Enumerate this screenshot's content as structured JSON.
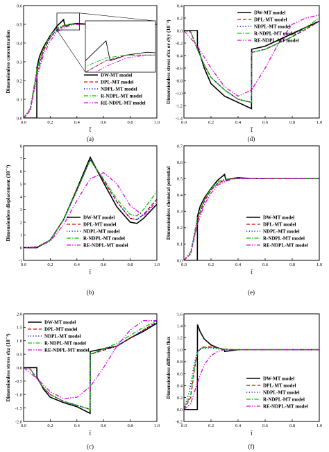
{
  "styles": {
    "DW-MT model": {
      "color": "#000000",
      "dash": "",
      "width": 1.6
    },
    "DPL-MT model": {
      "color": "#e00000",
      "dash": "5,3",
      "width": 1.3
    },
    "NDPL-MT model": {
      "color": "#1010c0",
      "dash": "1.2,2.6",
      "width": 1.6
    },
    "R-NDPL-MT model": {
      "color": "#00c000",
      "dash": "6,2,1.5,2",
      "width": 1.3
    },
    "RE-NDPL-MT model": {
      "color": "#e000e0",
      "dash": "6,2,1.5,2,1.5,2",
      "width": 1.3
    }
  },
  "chart_data": [
    {
      "type": "line",
      "caption": "(a)",
      "ylabel": "Dimensionless concentration",
      "xlabel": "t̄",
      "xlim": [
        0,
        1
      ],
      "ylim": [
        0,
        0.6
      ],
      "xticks": [
        "0.0",
        "0.2",
        "0.4",
        "0.6",
        "0.8",
        "1.0"
      ],
      "yticks": [
        "0.0",
        "0.1",
        "0.2",
        "0.3",
        "0.4",
        "0.5",
        "0.6"
      ],
      "legend_position": "bottom-right",
      "zoom_inset": true,
      "series": [
        {
          "name": "DW-MT model",
          "x": [
            0,
            0.099,
            0.1,
            0.12,
            0.15,
            0.2,
            0.25,
            0.3,
            0.31,
            0.35,
            0.4,
            0.5,
            1.0
          ],
          "y": [
            0,
            0,
            0.27,
            0.33,
            0.38,
            0.44,
            0.49,
            0.525,
            0.49,
            0.5,
            0.505,
            0.5,
            0.5
          ]
        },
        {
          "name": "DPL-MT model",
          "x": [
            0,
            0.05,
            0.1,
            0.15,
            0.2,
            0.25,
            0.3,
            0.35,
            0.4,
            0.5,
            1.0
          ],
          "y": [
            0,
            0.04,
            0.24,
            0.36,
            0.43,
            0.47,
            0.49,
            0.5,
            0.5,
            0.5,
            0.5
          ]
        },
        {
          "name": "NDPL-MT model",
          "x": [
            0,
            0.05,
            0.1,
            0.15,
            0.2,
            0.25,
            0.3,
            0.35,
            0.4,
            0.5,
            1.0
          ],
          "y": [
            0,
            0.05,
            0.25,
            0.36,
            0.43,
            0.47,
            0.49,
            0.5,
            0.5,
            0.5,
            0.5
          ]
        },
        {
          "name": "R-NDPL-MT model",
          "x": [
            0,
            0.05,
            0.1,
            0.15,
            0.2,
            0.25,
            0.3,
            0.35,
            0.4,
            0.5,
            1.0
          ],
          "y": [
            0,
            0.05,
            0.26,
            0.37,
            0.44,
            0.48,
            0.495,
            0.5,
            0.5,
            0.5,
            0.5
          ]
        },
        {
          "name": "RE-NDPL-MT model",
          "x": [
            0,
            0.05,
            0.1,
            0.15,
            0.2,
            0.25,
            0.3,
            0.35,
            0.4,
            0.5,
            1.0
          ],
          "y": [
            0,
            0.04,
            0.22,
            0.34,
            0.41,
            0.46,
            0.48,
            0.495,
            0.5,
            0.5,
            0.5
          ]
        }
      ]
    },
    {
      "type": "line",
      "caption": "(d)",
      "ylabel": "Dimensionless stress σ̄xx or σ̄yy (10⁻⁴)",
      "xlabel": "t̄",
      "xlim": [
        0,
        1
      ],
      "ylim": [
        -1.4,
        0.4
      ],
      "xticks": [
        "0.0",
        "0.2",
        "0.4",
        "0.6",
        "0.8",
        "1.0"
      ],
      "yticks": [
        "-1.4",
        "-1.2",
        "-1.0",
        "-0.8",
        "-0.6",
        "-0.4",
        "-0.2",
        "0.0",
        "0.2",
        "0.4"
      ],
      "legend_position": "top-right",
      "series": [
        {
          "name": "DW-MT model",
          "x": [
            0,
            0.099,
            0.1,
            0.15,
            0.2,
            0.3,
            0.4,
            0.499,
            0.5,
            0.6,
            0.7,
            0.8,
            0.9,
            1.0
          ],
          "y": [
            0,
            0,
            -0.25,
            -0.6,
            -0.85,
            -1.05,
            -1.15,
            -1.25,
            -0.3,
            -0.25,
            -0.15,
            -0.05,
            0.05,
            0.15
          ]
        },
        {
          "name": "DPL-MT model",
          "x": [
            0,
            0.05,
            0.1,
            0.15,
            0.2,
            0.3,
            0.4,
            0.499,
            0.5,
            0.6,
            0.7,
            0.8,
            0.9,
            1.0
          ],
          "y": [
            0,
            -0.02,
            -0.3,
            -0.55,
            -0.75,
            -0.95,
            -1.1,
            -1.15,
            -0.35,
            -0.3,
            -0.2,
            -0.1,
            0.02,
            0.15
          ]
        },
        {
          "name": "NDPL-MT model",
          "x": [
            0,
            0.05,
            0.1,
            0.15,
            0.2,
            0.3,
            0.4,
            0.499,
            0.5,
            0.6,
            0.7,
            0.8,
            0.9,
            1.0
          ],
          "y": [
            0,
            -0.02,
            -0.3,
            -0.55,
            -0.75,
            -0.95,
            -1.1,
            -1.15,
            -0.35,
            -0.3,
            -0.2,
            -0.1,
            0.02,
            0.15
          ]
        },
        {
          "name": "R-NDPL-MT model",
          "x": [
            0,
            0.05,
            0.1,
            0.15,
            0.2,
            0.3,
            0.4,
            0.499,
            0.5,
            0.6,
            0.7,
            0.8,
            0.9,
            1.0
          ],
          "y": [
            0,
            -0.02,
            -0.3,
            -0.55,
            -0.75,
            -0.95,
            -1.1,
            -1.15,
            -0.35,
            -0.3,
            -0.2,
            -0.1,
            0.05,
            0.2
          ]
        },
        {
          "name": "RE-NDPL-MT model",
          "x": [
            0,
            0.1,
            0.2,
            0.3,
            0.4,
            0.5,
            0.6,
            0.7,
            0.8,
            0.9,
            1.0
          ],
          "y": [
            0,
            -0.25,
            -0.6,
            -0.9,
            -1.05,
            -0.95,
            -0.6,
            -0.2,
            0.1,
            0.2,
            0.25
          ]
        }
      ]
    },
    {
      "type": "line",
      "caption": "(b)",
      "ylabel": "Dimensionless displacement (10⁻⁴)",
      "xlabel": "t̄",
      "xlim": [
        0,
        1
      ],
      "ylim": [
        -1,
        8
      ],
      "xticks": [
        "0.0",
        "0.2",
        "0.4",
        "0.6",
        "0.8",
        "1.0"
      ],
      "yticks": [
        "-1",
        "0",
        "1",
        "2",
        "3",
        "4",
        "5",
        "6",
        "7",
        "8"
      ],
      "legend_position": "bottom-center",
      "series": [
        {
          "name": "DW-MT model",
          "x": [
            0,
            0.1,
            0.2,
            0.3,
            0.4,
            0.5,
            0.6,
            0.7,
            0.8,
            0.85,
            0.9,
            1.0
          ],
          "y": [
            0,
            0,
            0.6,
            2.2,
            4.6,
            7.1,
            5.1,
            3.2,
            2.0,
            1.9,
            2.3,
            3.4
          ]
        },
        {
          "name": "DPL-MT model",
          "x": [
            0,
            0.1,
            0.2,
            0.3,
            0.4,
            0.5,
            0.6,
            0.7,
            0.8,
            0.85,
            0.9,
            1.0
          ],
          "y": [
            0,
            0.05,
            0.6,
            2.2,
            4.5,
            6.9,
            5.3,
            3.6,
            2.3,
            2.2,
            2.6,
            3.8
          ]
        },
        {
          "name": "NDPL-MT model",
          "x": [
            0,
            0.1,
            0.2,
            0.3,
            0.4,
            0.5,
            0.6,
            0.7,
            0.8,
            0.85,
            0.9,
            1.0
          ],
          "y": [
            0,
            0.05,
            0.6,
            2.2,
            4.5,
            6.9,
            5.3,
            3.6,
            2.3,
            2.2,
            2.6,
            3.8
          ]
        },
        {
          "name": "R-NDPL-MT model",
          "x": [
            0,
            0.1,
            0.2,
            0.3,
            0.4,
            0.5,
            0.6,
            0.7,
            0.8,
            0.85,
            0.9,
            1.0
          ],
          "y": [
            0,
            0.05,
            0.6,
            2.2,
            4.5,
            6.9,
            5.4,
            3.8,
            2.6,
            2.5,
            3.0,
            4.4
          ]
        },
        {
          "name": "RE-NDPL-MT model",
          "x": [
            0,
            0.1,
            0.2,
            0.3,
            0.4,
            0.5,
            0.6,
            0.7,
            0.8,
            0.9,
            1.0
          ],
          "y": [
            0,
            0.05,
            0.5,
            1.8,
            3.7,
            5.4,
            5.9,
            5.0,
            3.3,
            2.5,
            3.6
          ]
        }
      ]
    },
    {
      "type": "line",
      "caption": "(e)",
      "ylabel": "Dimensionless chemical potential",
      "xlabel": "t̄",
      "xlim": [
        0,
        1
      ],
      "ylim": [
        0,
        0.7
      ],
      "xticks": [
        "0.0",
        "0.2",
        "0.4",
        "0.6",
        "0.8",
        "1.0"
      ],
      "yticks": [
        "0.0",
        "0.1",
        "0.2",
        "0.3",
        "0.4",
        "0.5",
        "0.6",
        "0.7"
      ],
      "legend_position": "bottom-right",
      "series": [
        {
          "name": "DW-MT model",
          "x": [
            0,
            0.099,
            0.1,
            0.12,
            0.15,
            0.2,
            0.25,
            0.3,
            0.31,
            0.35,
            0.4,
            0.5,
            1.0
          ],
          "y": [
            0,
            0,
            0.27,
            0.33,
            0.38,
            0.44,
            0.49,
            0.525,
            0.49,
            0.5,
            0.505,
            0.5,
            0.5
          ]
        },
        {
          "name": "DPL-MT model",
          "x": [
            0,
            0.05,
            0.1,
            0.15,
            0.2,
            0.25,
            0.3,
            0.35,
            0.4,
            0.5,
            1.0
          ],
          "y": [
            0,
            0.04,
            0.24,
            0.36,
            0.43,
            0.47,
            0.49,
            0.5,
            0.5,
            0.5,
            0.5
          ]
        },
        {
          "name": "NDPL-MT model",
          "x": [
            0,
            0.05,
            0.1,
            0.15,
            0.2,
            0.25,
            0.3,
            0.35,
            0.4,
            0.5,
            1.0
          ],
          "y": [
            0,
            0.05,
            0.25,
            0.36,
            0.43,
            0.47,
            0.49,
            0.5,
            0.5,
            0.5,
            0.5
          ]
        },
        {
          "name": "R-NDPL-MT model",
          "x": [
            0,
            0.05,
            0.1,
            0.15,
            0.2,
            0.25,
            0.3,
            0.35,
            0.4,
            0.5,
            1.0
          ],
          "y": [
            0,
            0.05,
            0.26,
            0.37,
            0.44,
            0.48,
            0.495,
            0.5,
            0.5,
            0.5,
            0.5
          ]
        },
        {
          "name": "RE-NDPL-MT model",
          "x": [
            0,
            0.05,
            0.1,
            0.15,
            0.2,
            0.25,
            0.3,
            0.35,
            0.4,
            0.5,
            1.0
          ],
          "y": [
            0,
            0.04,
            0.22,
            0.34,
            0.41,
            0.46,
            0.48,
            0.495,
            0.5,
            0.5,
            0.5
          ]
        }
      ]
    },
    {
      "type": "line",
      "caption": "(c)",
      "ylabel": "Dimensionless stress σ̄zz (10⁻⁴)",
      "xlabel": "t̄",
      "xlim": [
        0,
        1
      ],
      "ylim": [
        -2.0,
        2.0
      ],
      "xticks": [
        "0.0",
        "0.2",
        "0.4",
        "0.6",
        "0.8",
        "1.0"
      ],
      "yticks": [
        "-2.0",
        "-1.5",
        "-1.0",
        "-0.5",
        "0.0",
        "0.5",
        "1.0",
        "1.5",
        "2.0"
      ],
      "legend_position": "top-left",
      "series": [
        {
          "name": "DW-MT model",
          "x": [
            0,
            0.099,
            0.1,
            0.15,
            0.2,
            0.3,
            0.4,
            0.499,
            0.5,
            0.6,
            0.7,
            0.8,
            0.9,
            1.0
          ],
          "y": [
            0,
            0,
            -0.35,
            -0.8,
            -1.1,
            -1.3,
            -1.45,
            -1.7,
            0.6,
            0.7,
            0.8,
            1.1,
            1.35,
            1.65
          ]
        },
        {
          "name": "DPL-MT model",
          "x": [
            0,
            0.05,
            0.1,
            0.15,
            0.2,
            0.3,
            0.4,
            0.499,
            0.5,
            0.6,
            0.7,
            0.8,
            0.9,
            1.0
          ],
          "y": [
            0,
            -0.05,
            -0.4,
            -0.75,
            -1.0,
            -1.25,
            -1.4,
            -1.55,
            0.5,
            0.65,
            0.8,
            1.1,
            1.4,
            1.7
          ]
        },
        {
          "name": "NDPL-MT model",
          "x": [
            0,
            0.05,
            0.1,
            0.15,
            0.2,
            0.3,
            0.4,
            0.499,
            0.5,
            0.6,
            0.7,
            0.8,
            0.9,
            1.0
          ],
          "y": [
            0,
            -0.05,
            -0.4,
            -0.75,
            -1.0,
            -1.25,
            -1.4,
            -1.55,
            0.5,
            0.65,
            0.8,
            1.1,
            1.4,
            1.7
          ]
        },
        {
          "name": "R-NDPL-MT model",
          "x": [
            0,
            0.05,
            0.1,
            0.15,
            0.2,
            0.3,
            0.4,
            0.499,
            0.5,
            0.6,
            0.7,
            0.8,
            0.9,
            1.0
          ],
          "y": [
            0,
            -0.05,
            -0.4,
            -0.75,
            -1.0,
            -1.25,
            -1.4,
            -1.55,
            0.5,
            0.7,
            0.9,
            1.2,
            1.5,
            1.75
          ]
        },
        {
          "name": "RE-NDPL-MT model",
          "x": [
            0,
            0.1,
            0.2,
            0.3,
            0.4,
            0.5,
            0.6,
            0.7,
            0.8,
            0.9,
            1.0
          ],
          "y": [
            0,
            -0.4,
            -0.9,
            -1.15,
            -1.1,
            -0.7,
            0.0,
            0.8,
            1.4,
            1.75,
            1.75
          ]
        }
      ]
    },
    {
      "type": "line",
      "caption": "(f)",
      "ylabel": "Dimensionless diffusion flux",
      "xlabel": "t̄",
      "xlim": [
        0,
        1
      ],
      "ylim": [
        -0.2,
        1.6
      ],
      "xticks": [
        "0.0",
        "0.2",
        "0.4",
        "0.6",
        "0.8",
        "1.0"
      ],
      "yticks": [
        "-0.2",
        "0.0",
        "0.2",
        "0.4",
        "0.6",
        "0.8",
        "1.0",
        "1.2",
        "1.4",
        "1.6"
      ],
      "legend_position": "bottom-right",
      "series": [
        {
          "name": "DW-MT model",
          "x": [
            0,
            0.099,
            0.1,
            0.12,
            0.15,
            0.2,
            0.25,
            0.3,
            0.301,
            0.4,
            1.0
          ],
          "y": [
            0,
            0,
            1.42,
            1.3,
            1.18,
            1.08,
            1.03,
            1.0,
            0.97,
            1.0,
            1.0
          ]
        },
        {
          "name": "DPL-MT model",
          "x": [
            0,
            0.05,
            0.08,
            0.1,
            0.13,
            0.2,
            0.3,
            0.4,
            1.0
          ],
          "y": [
            0,
            0.2,
            0.7,
            0.95,
            1.04,
            1.05,
            1.01,
            1.0,
            1.0
          ]
        },
        {
          "name": "NDPL-MT model",
          "x": [
            0,
            0.04,
            0.08,
            0.1,
            0.13,
            0.2,
            0.3,
            0.4,
            1.0
          ],
          "y": [
            0,
            0.3,
            0.8,
            0.98,
            1.02,
            1.03,
            1.0,
            1.0,
            1.0
          ]
        },
        {
          "name": "R-NDPL-MT model",
          "x": [
            0,
            0.05,
            0.08,
            0.1,
            0.13,
            0.2,
            0.3,
            0.4,
            1.0
          ],
          "y": [
            0,
            0.25,
            0.75,
            0.95,
            1.03,
            1.04,
            1.01,
            1.0,
            1.0
          ]
        },
        {
          "name": "RE-NDPL-MT model",
          "x": [
            0,
            0.05,
            0.1,
            0.15,
            0.2,
            0.25,
            0.3,
            0.4,
            1.0
          ],
          "y": [
            0,
            0.1,
            0.45,
            0.75,
            0.9,
            0.97,
            1.0,
            1.0,
            1.0
          ]
        }
      ]
    }
  ]
}
